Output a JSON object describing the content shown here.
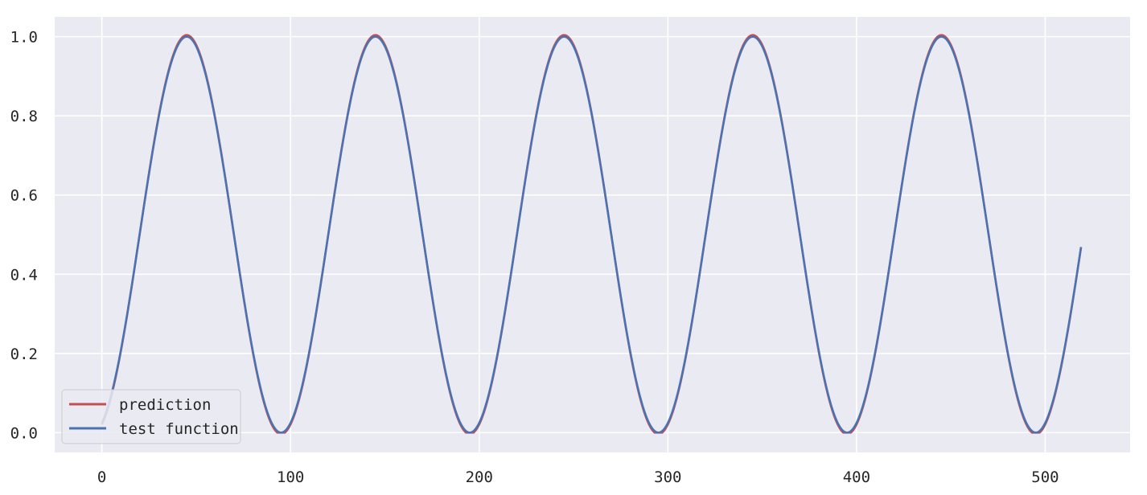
{
  "chart_data": {
    "type": "line",
    "title": "",
    "xlabel": "",
    "ylabel": "",
    "xlim": [
      -25,
      545
    ],
    "ylim": [
      -0.05,
      1.05
    ],
    "x_ticks": [
      0,
      100,
      200,
      300,
      400,
      500
    ],
    "y_ticks": [
      0.0,
      0.2,
      0.4,
      0.6,
      0.8,
      1.0
    ],
    "x_tick_labels": [
      "0",
      "100",
      "200",
      "300",
      "400",
      "500"
    ],
    "y_tick_labels": [
      "0.0",
      "0.2",
      "0.4",
      "0.6",
      "0.8",
      "1.0"
    ],
    "grid": true,
    "legend_position": "bottom-left",
    "background": "#eaeaf2",
    "x_range": [
      0,
      519
    ],
    "series": [
      {
        "name": "prediction",
        "color": "#c44e52",
        "formula": "max(0, 1.008*sin(pi*(x+5)/100)^2 - 0.004)",
        "x": [
          0,
          5,
          10,
          15,
          20,
          25,
          30,
          35,
          40,
          45,
          50,
          55,
          60,
          65,
          70,
          75,
          80,
          85,
          90,
          95,
          100,
          105,
          110,
          115,
          120,
          125,
          130,
          135,
          140,
          145,
          150,
          155,
          160,
          165,
          170,
          175,
          180,
          185,
          190,
          195,
          200,
          205,
          210,
          215,
          220,
          225,
          230,
          235,
          240,
          245,
          250,
          255,
          260,
          265,
          270,
          275,
          280,
          285,
          290,
          295,
          300,
          305,
          310,
          315,
          320,
          325,
          330,
          335,
          340,
          345,
          350,
          355,
          360,
          365,
          370,
          375,
          380,
          385,
          390,
          395,
          400,
          405,
          410,
          415,
          420,
          425,
          430,
          435,
          440,
          445,
          450,
          455,
          460,
          465,
          470,
          475,
          480,
          485,
          490,
          495,
          500,
          505,
          510,
          515,
          519
        ],
        "values": [
          0.02,
          0.09,
          0.2,
          0.35,
          0.51,
          0.67,
          0.81,
          0.92,
          0.98,
          1.008,
          0.98,
          0.91,
          0.8,
          0.66,
          0.5,
          0.34,
          0.2,
          0.09,
          0.02,
          0.0,
          0.02,
          0.09,
          0.2,
          0.35,
          0.51,
          0.67,
          0.81,
          0.92,
          0.98,
          1.008,
          0.98,
          0.91,
          0.8,
          0.66,
          0.5,
          0.34,
          0.2,
          0.09,
          0.02,
          0.0,
          0.02,
          0.09,
          0.2,
          0.35,
          0.51,
          0.67,
          0.81,
          0.92,
          0.98,
          1.008,
          0.98,
          0.91,
          0.8,
          0.66,
          0.5,
          0.34,
          0.2,
          0.09,
          0.02,
          0.0,
          0.02,
          0.09,
          0.2,
          0.35,
          0.51,
          0.67,
          0.81,
          0.92,
          0.98,
          1.008,
          0.98,
          0.91,
          0.8,
          0.66,
          0.5,
          0.34,
          0.2,
          0.09,
          0.02,
          0.0,
          0.02,
          0.09,
          0.2,
          0.35,
          0.51,
          0.67,
          0.81,
          0.92,
          0.98,
          1.008,
          0.98,
          0.91,
          0.8,
          0.66,
          0.5,
          0.34,
          0.2,
          0.09,
          0.02,
          0.0,
          0.02,
          0.09,
          0.2,
          0.35,
          0.49
        ]
      },
      {
        "name": "test function",
        "color": "#4c72b0",
        "formula": "sin(pi*(x+5)/100)^2",
        "x": [
          0,
          5,
          10,
          15,
          20,
          25,
          30,
          35,
          40,
          45,
          50,
          55,
          60,
          65,
          70,
          75,
          80,
          85,
          90,
          95,
          100,
          105,
          110,
          115,
          120,
          125,
          130,
          135,
          140,
          145,
          150,
          155,
          160,
          165,
          170,
          175,
          180,
          185,
          190,
          195,
          200,
          205,
          210,
          215,
          220,
          225,
          230,
          235,
          240,
          245,
          250,
          255,
          260,
          265,
          270,
          275,
          280,
          285,
          290,
          295,
          300,
          305,
          310,
          315,
          320,
          325,
          330,
          335,
          340,
          345,
          350,
          355,
          360,
          365,
          370,
          375,
          380,
          385,
          390,
          395,
          400,
          405,
          410,
          415,
          420,
          425,
          430,
          435,
          440,
          445,
          450,
          455,
          460,
          465,
          470,
          475,
          480,
          485,
          490,
          495,
          500,
          505,
          510,
          515,
          519
        ],
        "values": [
          0.02,
          0.1,
          0.21,
          0.35,
          0.5,
          0.65,
          0.79,
          0.9,
          0.98,
          1.0,
          0.98,
          0.9,
          0.79,
          0.65,
          0.5,
          0.35,
          0.21,
          0.1,
          0.02,
          0.0,
          0.02,
          0.1,
          0.21,
          0.35,
          0.5,
          0.65,
          0.79,
          0.9,
          0.98,
          1.0,
          0.98,
          0.9,
          0.79,
          0.65,
          0.5,
          0.35,
          0.21,
          0.1,
          0.02,
          0.0,
          0.02,
          0.1,
          0.21,
          0.35,
          0.5,
          0.65,
          0.79,
          0.9,
          0.98,
          1.0,
          0.98,
          0.9,
          0.79,
          0.65,
          0.5,
          0.35,
          0.21,
          0.1,
          0.02,
          0.0,
          0.02,
          0.1,
          0.21,
          0.35,
          0.5,
          0.65,
          0.79,
          0.9,
          0.98,
          1.0,
          0.98,
          0.9,
          0.79,
          0.65,
          0.5,
          0.35,
          0.21,
          0.1,
          0.02,
          0.0,
          0.02,
          0.1,
          0.21,
          0.35,
          0.5,
          0.65,
          0.79,
          0.9,
          0.98,
          1.0,
          0.98,
          0.9,
          0.79,
          0.65,
          0.5,
          0.35,
          0.21,
          0.1,
          0.02,
          0.0,
          0.02,
          0.1,
          0.21,
          0.35,
          0.47
        ]
      }
    ]
  }
}
